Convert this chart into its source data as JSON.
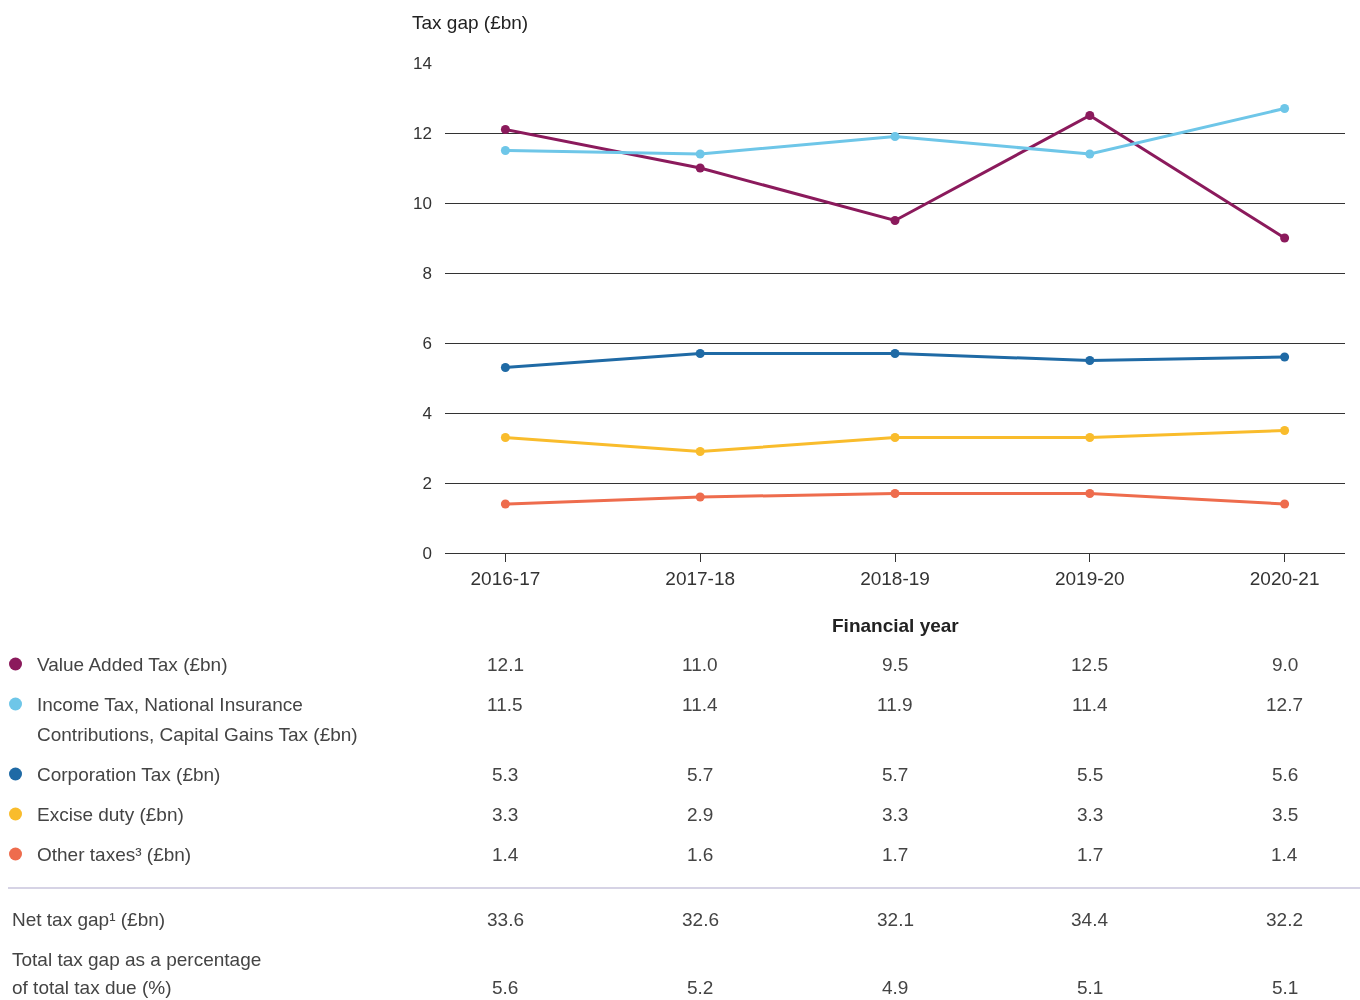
{
  "chart_data": {
    "type": "line",
    "ylabel": "Tax gap (£bn)",
    "xlabel": "Financial year",
    "categories": [
      "2016-17",
      "2017-18",
      "2018-19",
      "2019-20",
      "2020-21"
    ],
    "series": [
      {
        "name": "Value Added Tax (£bn)",
        "color": "#8b1a5c",
        "values": [
          12.1,
          11.0,
          9.5,
          12.5,
          9.0
        ],
        "value_labels": [
          "12.1",
          "11.0",
          "9.5",
          "12.5",
          "9.0"
        ]
      },
      {
        "name": "Income Tax, National Insurance Contributions, Capital Gains Tax (£bn)",
        "color": "#6ec6e8",
        "values": [
          11.5,
          11.4,
          11.9,
          11.4,
          12.7
        ]
      },
      {
        "name": "Corporation Tax (£bn)",
        "color": "#1f6aa5",
        "values": [
          5.3,
          5.7,
          5.7,
          5.5,
          5.6
        ]
      },
      {
        "name": "Excise duty (£bn)",
        "color": "#f9bc2c",
        "values": [
          3.3,
          2.9,
          3.3,
          3.3,
          3.5
        ]
      },
      {
        "name": "Other taxes³ (£bn)",
        "color": "#ee6c4d",
        "values": [
          1.4,
          1.6,
          1.7,
          1.7,
          1.4
        ]
      }
    ],
    "ylim": [
      0,
      14
    ],
    "yticks": [
      0,
      2,
      4,
      6,
      8,
      10,
      12,
      14
    ],
    "grid": "y",
    "legend": "bottom left",
    "marker": "circle",
    "line_style": "solid",
    "data_labels": true,
    "annotations": [
      "Net tax gap¹ (£bn)",
      "33.6",
      "32.6",
      "32.1",
      "34.4",
      "32.2",
      "Total tax gap as a percentage of total tax due (%)",
      "5.6",
      "5.2",
      "4.9",
      "5.1",
      "5.1"
    ]
  }
}
